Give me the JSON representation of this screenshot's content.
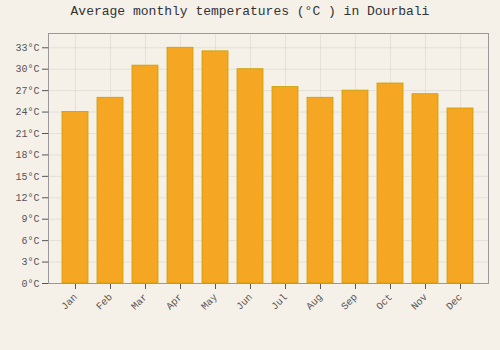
{
  "chart_data": {
    "type": "bar",
    "title": "Average monthly temperatures (°C ) in Dourbali",
    "categories": [
      "Jan",
      "Feb",
      "Mar",
      "Apr",
      "May",
      "Jun",
      "Jul",
      "Aug",
      "Sep",
      "Oct",
      "Nov",
      "Dec"
    ],
    "values": [
      24,
      26,
      30.5,
      33,
      32.5,
      30,
      27.5,
      26,
      27,
      28,
      26.5,
      24.5
    ],
    "color": "#F5A623",
    "ylim": [
      0,
      35
    ],
    "yticks": [
      {
        "value": 0,
        "label": "0°C"
      },
      {
        "value": 3,
        "label": "3°C"
      },
      {
        "value": 6,
        "label": "6°C"
      },
      {
        "value": 9,
        "label": "9°C"
      },
      {
        "value": 12,
        "label": "12°C"
      },
      {
        "value": 15,
        "label": "15°C"
      },
      {
        "value": 18,
        "label": "18°C"
      },
      {
        "value": 21,
        "label": "21°C"
      },
      {
        "value": 24,
        "label": "24°C"
      },
      {
        "value": 27,
        "label": "27°C"
      },
      {
        "value": 30,
        "label": "30°C"
      },
      {
        "value": 33,
        "label": "33°C"
      }
    ],
    "grid": true
  }
}
